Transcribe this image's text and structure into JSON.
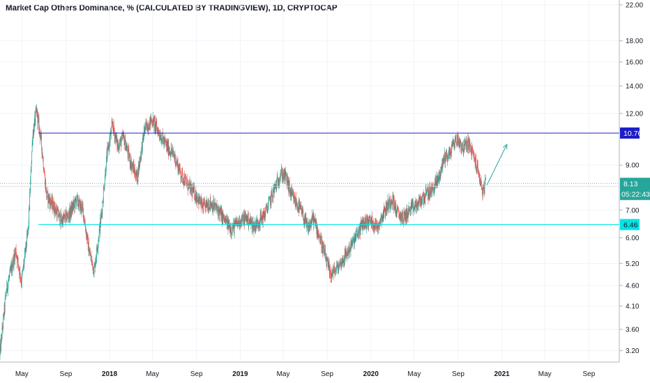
{
  "chart_data": {
    "type": "candlestick",
    "title": "Market Cap Others Dominance, % (CALCULATED BY TRADINGVIEW), 1D, CRYPTOCAP",
    "y_scale": "log",
    "ylim": [
      3.0,
      22.6
    ],
    "y_ticks": [
      {
        "value": 22.0,
        "label": "22.00"
      },
      {
        "value": 18.0,
        "label": "18.00"
      },
      {
        "value": 16.0,
        "label": "16.00"
      },
      {
        "value": 14.0,
        "label": "14.00"
      },
      {
        "value": 12.0,
        "label": "12.00"
      },
      {
        "value": 9.0,
        "label": "9.00"
      },
      {
        "value": 7.0,
        "label": "7.00"
      },
      {
        "value": 6.0,
        "label": "6.00"
      },
      {
        "value": 5.2,
        "label": "5.20"
      },
      {
        "value": 4.6,
        "label": "4.60"
      },
      {
        "value": 4.1,
        "label": "4.10"
      },
      {
        "value": 3.6,
        "label": "3.60"
      },
      {
        "value": 3.2,
        "label": "3.20"
      }
    ],
    "xlim": [
      "2017-03-01",
      "2021-11-25"
    ],
    "x_ticks": [
      {
        "date": "2017-05-01",
        "label": "May",
        "bold": false
      },
      {
        "date": "2017-09-01",
        "label": "Sep",
        "bold": false
      },
      {
        "date": "2018-01-01",
        "label": "2018",
        "bold": true
      },
      {
        "date": "2018-05-01",
        "label": "May",
        "bold": false
      },
      {
        "date": "2018-09-01",
        "label": "Sep",
        "bold": false
      },
      {
        "date": "2019-01-01",
        "label": "2019",
        "bold": true
      },
      {
        "date": "2019-05-01",
        "label": "May",
        "bold": false
      },
      {
        "date": "2019-09-01",
        "label": "Sep",
        "bold": false
      },
      {
        "date": "2020-01-01",
        "label": "2020",
        "bold": true
      },
      {
        "date": "2020-05-01",
        "label": "May",
        "bold": false
      },
      {
        "date": "2020-09-01",
        "label": "Sep",
        "bold": false
      },
      {
        "date": "2021-01-01",
        "label": "2021",
        "bold": true
      },
      {
        "date": "2021-05-01",
        "label": "May",
        "bold": false
      },
      {
        "date": "2021-09-01",
        "label": "Sep",
        "bold": false
      }
    ],
    "price_path": [
      [
        "2017-03-01",
        3.1
      ],
      [
        "2017-03-20",
        4.5
      ],
      [
        "2017-04-15",
        5.6
      ],
      [
        "2017-05-01",
        4.7
      ],
      [
        "2017-05-20",
        6.3
      ],
      [
        "2017-06-01",
        10.6
      ],
      [
        "2017-06-12",
        12.2
      ],
      [
        "2017-06-25",
        10.3
      ],
      [
        "2017-07-10",
        7.6
      ],
      [
        "2017-08-01",
        7.1
      ],
      [
        "2017-08-20",
        6.6
      ],
      [
        "2017-09-10",
        6.8
      ],
      [
        "2017-10-01",
        7.4
      ],
      [
        "2017-10-20",
        7.0
      ],
      [
        "2017-11-05",
        5.6
      ],
      [
        "2017-11-20",
        5.0
      ],
      [
        "2017-12-10",
        6.8
      ],
      [
        "2017-12-25",
        9.4
      ],
      [
        "2018-01-10",
        11.3
      ],
      [
        "2018-01-25",
        10.0
      ],
      [
        "2018-02-10",
        10.5
      ],
      [
        "2018-03-01",
        9.2
      ],
      [
        "2018-03-20",
        8.4
      ],
      [
        "2018-04-10",
        11.0
      ],
      [
        "2018-05-01",
        11.6
      ],
      [
        "2018-05-20",
        10.8
      ],
      [
        "2018-06-10",
        10.0
      ],
      [
        "2018-07-01",
        9.5
      ],
      [
        "2018-07-20",
        8.6
      ],
      [
        "2018-08-10",
        8.0
      ],
      [
        "2018-09-01",
        7.6
      ],
      [
        "2018-09-20",
        7.1
      ],
      [
        "2018-10-10",
        7.3
      ],
      [
        "2018-11-01",
        7.0
      ],
      [
        "2018-11-20",
        6.6
      ],
      [
        "2018-12-10",
        6.3
      ],
      [
        "2019-01-01",
        6.6
      ],
      [
        "2019-01-20",
        6.7
      ],
      [
        "2019-02-10",
        6.4
      ],
      [
        "2019-03-10",
        6.8
      ],
      [
        "2019-04-01",
        7.6
      ],
      [
        "2019-04-25",
        8.6
      ],
      [
        "2019-05-10",
        8.4
      ],
      [
        "2019-05-25",
        7.6
      ],
      [
        "2019-06-20",
        7.0
      ],
      [
        "2019-07-10",
        6.3
      ],
      [
        "2019-07-25",
        6.7
      ],
      [
        "2019-08-10",
        6.1
      ],
      [
        "2019-08-25",
        5.5
      ],
      [
        "2019-09-10",
        4.9
      ],
      [
        "2019-09-25",
        5.0
      ],
      [
        "2019-10-15",
        5.3
      ],
      [
        "2019-11-01",
        5.6
      ],
      [
        "2019-11-20",
        6.0
      ],
      [
        "2019-12-10",
        6.5
      ],
      [
        "2020-01-01",
        6.6
      ],
      [
        "2020-01-20",
        6.4
      ],
      [
        "2020-02-10",
        7.0
      ],
      [
        "2020-03-01",
        7.5
      ],
      [
        "2020-03-15",
        6.9
      ],
      [
        "2020-04-01",
        6.7
      ],
      [
        "2020-04-20",
        7.0
      ],
      [
        "2020-05-10",
        7.2
      ],
      [
        "2020-06-01",
        7.6
      ],
      [
        "2020-06-20",
        7.8
      ],
      [
        "2020-07-10",
        8.4
      ],
      [
        "2020-07-25",
        9.4
      ],
      [
        "2020-08-10",
        9.6
      ],
      [
        "2020-08-20",
        10.2
      ],
      [
        "2020-09-01",
        10.4
      ],
      [
        "2020-09-15",
        9.9
      ],
      [
        "2020-09-30",
        10.2
      ],
      [
        "2020-10-10",
        9.7
      ],
      [
        "2020-10-20",
        9.2
      ],
      [
        "2020-11-01",
        8.4
      ],
      [
        "2020-11-10",
        7.7
      ],
      [
        "2020-11-17",
        8.13
      ]
    ],
    "horizontal_levels": [
      {
        "value": 10.76,
        "color": "#1c1cc8",
        "label": "10.76"
      },
      {
        "value": 6.46,
        "color": "#00e5e5",
        "label": "6.46"
      }
    ],
    "last_price": {
      "value": 8.13,
      "label": "8.13",
      "countdown": "05:22:43",
      "color": "#26a69a"
    },
    "arrow": {
      "from": [
        "2020-11-20",
        8.05
      ],
      "to": [
        "2021-01-15",
        10.1
      ],
      "color": "#26a69a"
    },
    "colors": {
      "up": "#26a69a",
      "down": "#ef5350",
      "grid": "#f0f3fa",
      "axis": "#787b86"
    }
  }
}
